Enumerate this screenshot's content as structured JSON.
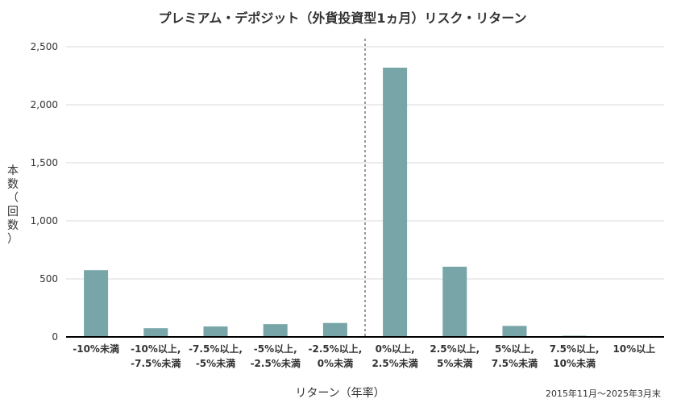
{
  "chart_data": {
    "type": "bar",
    "title": "プレミアム・デポジット（外貨投資型1ヵ月）リスク・リターン",
    "xlabel": "リターン（年率）",
    "ylabel": "本数（回数）",
    "categories": [
      "-10%未満",
      "-10%以上, -7.5%未満",
      "-7.5%以上, -5%未満",
      "-5%以上, -2.5%未満",
      "-2.5%以上, 0%未満",
      "0%以上, 2.5%未満",
      "2.5%以上, 5%未満",
      "5%以上, 7.5%未満",
      "7.5%以上, 10%未満",
      "10%以上"
    ],
    "values": [
      575,
      75,
      90,
      110,
      120,
      2320,
      605,
      95,
      10,
      0
    ],
    "ylim": [
      0,
      2500
    ],
    "yticks": [
      0,
      500,
      1000,
      1500,
      2000,
      2500
    ],
    "ytick_labels": [
      "0",
      "500",
      "1,000",
      "1,500",
      "2,000",
      "2,500"
    ],
    "grid": true,
    "reference_line_between_categories": [
      4,
      5
    ],
    "bar_color": "#78a5a8",
    "note": "2015年11月〜2025年3月末"
  }
}
